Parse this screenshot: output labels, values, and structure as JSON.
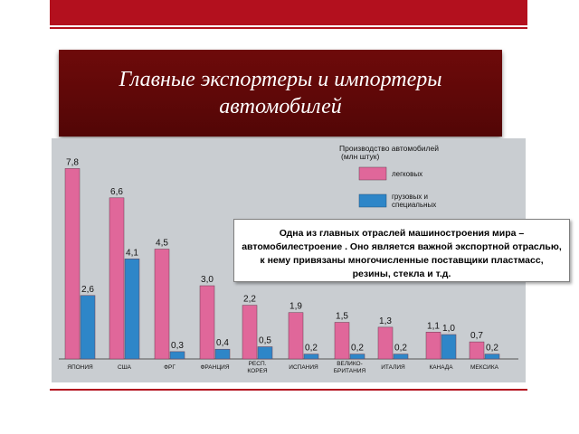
{
  "title": "Главные экспортеры и импортеры автомобилей",
  "callout_text": "Одна из главных отраслей машиностроения мира – автомобилестроение . Оно является важной экспортной отраслью, к нему привязаны многочисленные поставщики пластмасс, резины, стекла и т.д.",
  "colors": {
    "header_bar": "#b3101e",
    "title_box": "#5e0808",
    "passenger": "#e0679a",
    "freight": "#2e86c8"
  },
  "chart_data": {
    "type": "bar",
    "title": "Производство автомобилей (млн штук)",
    "categories": [
      "ЯПОНИЯ",
      "США",
      "ФРГ",
      "ФРАНЦИЯ",
      "РЕСП. КОРЕЯ",
      "ИСПАНИЯ",
      "ВЕЛИКО-БРИТАНИЯ",
      "ИТАЛИЯ",
      "КАНАДА",
      "МЕКСИКА"
    ],
    "series": [
      {
        "name": "легковых",
        "values": [
          7.8,
          6.6,
          4.5,
          3.0,
          2.2,
          1.9,
          1.5,
          1.3,
          1.1,
          0.7
        ]
      },
      {
        "name": "грузовых и специальных",
        "values": [
          2.6,
          4.1,
          0.3,
          0.4,
          0.5,
          0.2,
          0.2,
          0.2,
          1.0,
          0.2
        ]
      }
    ],
    "value_labels": {
      "passenger": [
        "7,8",
        "6,6",
        "4,5",
        "3,0",
        "2,2",
        "1,9",
        "1,5",
        "1,3",
        "1,1",
        "0,7"
      ],
      "freight": [
        "2,6",
        "4,1",
        "0,3",
        "0,4",
        "0,5",
        "0,2",
        "0,2",
        "0,2",
        "1,0",
        "0,2"
      ]
    },
    "ylim": [
      0,
      8
    ],
    "legend_position": "top-right",
    "grid": false
  }
}
